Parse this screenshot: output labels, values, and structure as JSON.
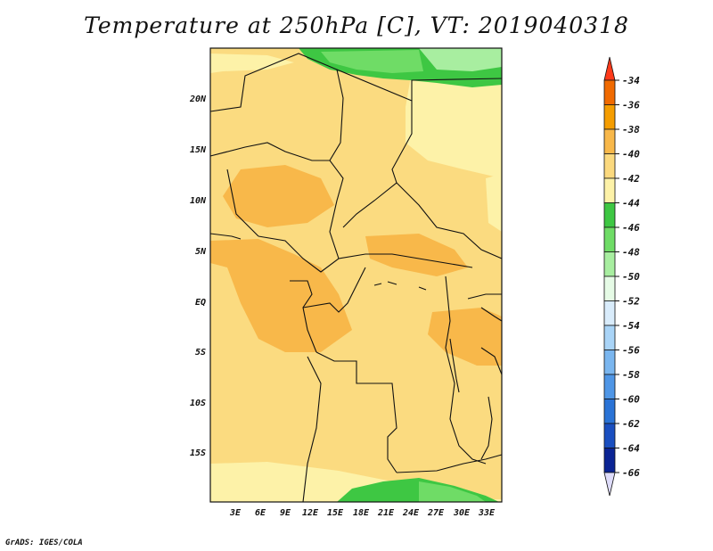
{
  "title": "Temperature at 250hPa [C], VT: 2019040318",
  "credit": "GrADS: IGES/COLA",
  "lat_labels": [
    "20N",
    "15N",
    "10N",
    "5N",
    "EQ",
    "5S",
    "10S",
    "15S"
  ],
  "lon_labels": [
    "3E",
    "6E",
    "9E",
    "12E",
    "15E",
    "18E",
    "21E",
    "24E",
    "27E",
    "30E",
    "33E"
  ],
  "colorbar": {
    "labels": [
      "-34",
      "-36",
      "-38",
      "-40",
      "-42",
      "-44",
      "-46",
      "-48",
      "-50",
      "-52",
      "-54",
      "-56",
      "-58",
      "-60",
      "-62",
      "-64",
      "-66"
    ],
    "colors": [
      "#ff3a1a",
      "#f06a00",
      "#f59d00",
      "#f8b84a",
      "#fbd97e",
      "#fdf2a8",
      "#3ec743",
      "#6fdc66",
      "#a8eea0",
      "#e6fbe6",
      "#d9ecfb",
      "#a9d4f7",
      "#7ab6ef",
      "#4f96e6",
      "#2a73d6",
      "#1a4fc0",
      "#0b2494",
      "#dedcfa"
    ]
  },
  "field_colors": {
    "t40": "#fbdb80",
    "t38": "#f8b84a",
    "t42": "#fdf2a8",
    "t44": "#3ec743",
    "t46": "#6fdc66",
    "t48": "#a8eea0"
  }
}
